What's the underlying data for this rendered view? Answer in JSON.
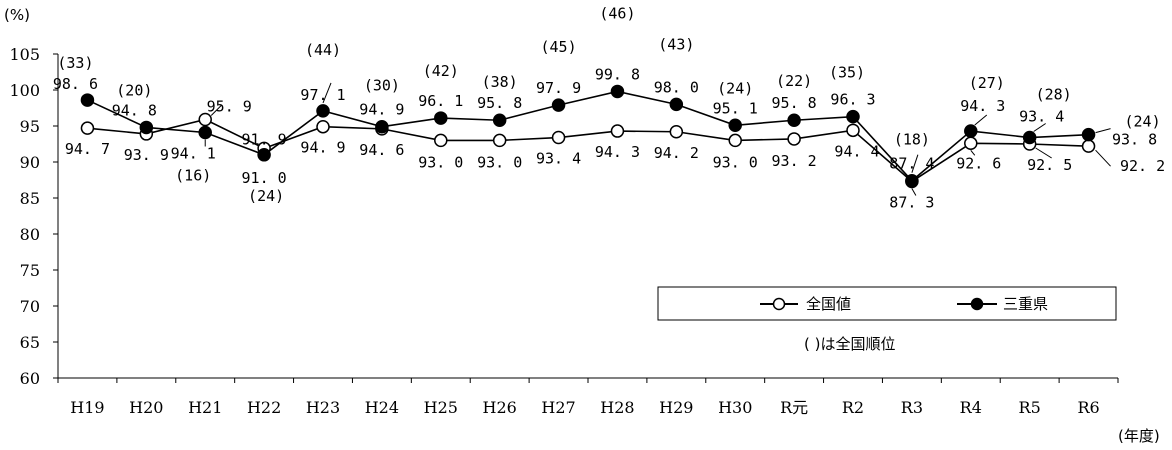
{
  "chart_data": {
    "type": "line",
    "y_unit": "(%)",
    "x_unit": "(年度)",
    "ylim": [
      60,
      105
    ],
    "y_ticks": [
      60,
      65,
      70,
      75,
      80,
      85,
      90,
      95,
      100,
      105
    ],
    "categories": [
      "H19",
      "H20",
      "H21",
      "H22",
      "H23",
      "H24",
      "H25",
      "H26",
      "H27",
      "H28",
      "H29",
      "H30",
      "R元",
      "R2",
      "R3",
      "R4",
      "R5",
      "R6"
    ],
    "series": [
      {
        "name": "全国値",
        "marker": "open-circle",
        "color": "#000000",
        "values": [
          94.7,
          93.9,
          95.9,
          91.9,
          94.9,
          94.6,
          93.0,
          93.0,
          93.4,
          94.3,
          94.2,
          93.0,
          93.2,
          94.4,
          87.3,
          92.6,
          92.5,
          92.2
        ],
        "labels": [
          "94.7",
          "93.9",
          "95.9",
          "91.9",
          "94.9",
          "94.6",
          "93.0",
          "93.0",
          "93.4",
          "94.3",
          "94.2",
          "93.0",
          "93.2",
          "94.4",
          "87.3",
          "92.6",
          "92.5",
          "92.2"
        ]
      },
      {
        "name": "三重県",
        "marker": "filled-circle",
        "color": "#000000",
        "values": [
          98.6,
          94.8,
          94.1,
          91.0,
          97.1,
          94.9,
          96.1,
          95.8,
          97.9,
          99.8,
          98.0,
          95.1,
          95.8,
          96.3,
          87.4,
          94.3,
          93.4,
          93.8
        ],
        "labels": [
          "98.6",
          "94.8",
          "94.1",
          "91.0",
          "97.1",
          "94.9",
          "96.1",
          "95.8",
          "97.9",
          "99.8",
          "98.0",
          "95.1",
          "95.8",
          "96.3",
          "87.4",
          "94.3",
          "93.4",
          "93.8"
        ],
        "ranks": [
          "(33)",
          "(20)",
          "(16)",
          "(24)",
          "(44)",
          "(30)",
          "(42)",
          "(38)",
          "(45)",
          "(46)",
          "(43)",
          "(24)",
          "(22)",
          "(35)",
          "(18)",
          "(27)",
          "(28)",
          "(24)"
        ]
      }
    ],
    "legend": {
      "position": "bottom-right",
      "items": [
        "全国値",
        "三重県"
      ],
      "note": "( )は全国順位"
    },
    "grid": false
  }
}
